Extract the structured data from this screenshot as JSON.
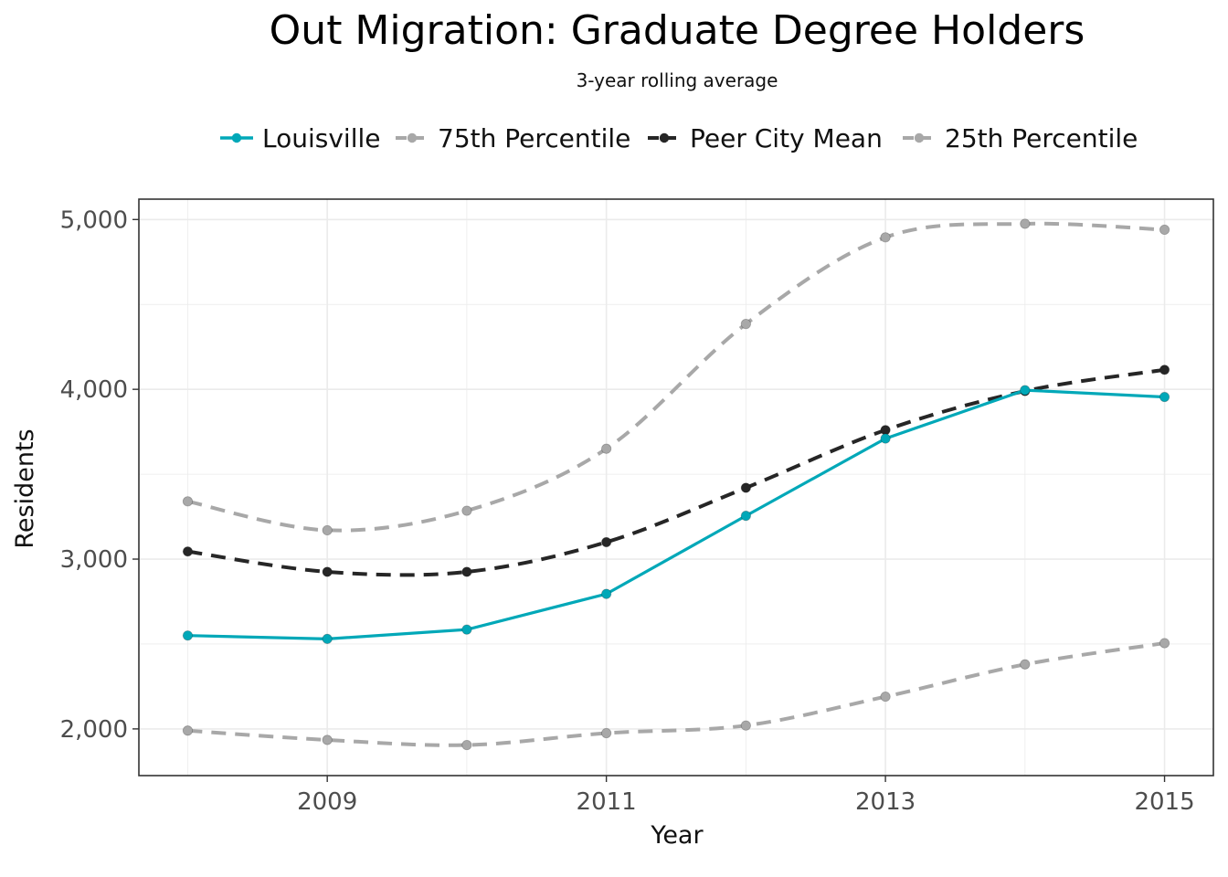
{
  "chart_data": {
    "type": "line",
    "title": "Out Migration: Graduate Degree Holders",
    "subtitle": "3-year rolling average",
    "xlabel": "Year",
    "ylabel": "Residents",
    "x": [
      2008,
      2009,
      2010,
      2011,
      2012,
      2013,
      2014,
      2015
    ],
    "xlim": [
      2007.65,
      2015.35
    ],
    "ylim": [
      1725,
      5120
    ],
    "x_ticks": [
      2009,
      2011,
      2013,
      2015
    ],
    "x_tick_labels": [
      "2009",
      "2011",
      "2013",
      "2015"
    ],
    "y_ticks": [
      2000,
      3000,
      4000,
      5000
    ],
    "y_tick_labels": [
      "2,000",
      "3,000",
      "4,000",
      "5,000"
    ],
    "grid": true,
    "legend_position": "top",
    "series": [
      {
        "name": "Louisville",
        "color": "#00a8b8",
        "style": "solid",
        "values": [
          2550,
          2530,
          2585,
          2795,
          3255,
          3710,
          3995,
          3955
        ]
      },
      {
        "name": "75th Percentile",
        "color": "#a8a8a8",
        "style": "dashed",
        "values": [
          3340,
          3170,
          3285,
          3650,
          4385,
          4895,
          4975,
          4940
        ]
      },
      {
        "name": "Peer City Mean",
        "color": "#262626",
        "style": "dashed",
        "values": [
          3045,
          2925,
          2925,
          3100,
          3420,
          3760,
          3990,
          4115
        ]
      },
      {
        "name": "25th Percentile",
        "color": "#a8a8a8",
        "style": "dashed",
        "values": [
          1990,
          1935,
          1905,
          1975,
          2020,
          2190,
          2380,
          2505
        ]
      }
    ]
  }
}
